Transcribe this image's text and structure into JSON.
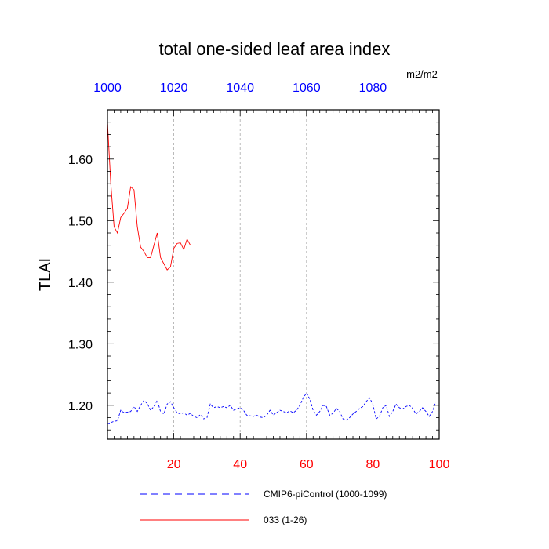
{
  "chart_data": {
    "type": "line",
    "title": "total one-sided leaf area index",
    "units": "m2/m2",
    "ylabel": "TLAI",
    "xlabel": "",
    "xlim": [
      0,
      100
    ],
    "ylim": [
      1.145,
      1.68
    ],
    "bottom_axis": {
      "color": "#ff0000",
      "ticks": [
        20,
        40,
        60,
        80,
        100
      ],
      "tick_labels": [
        "20",
        "40",
        "60",
        "80",
        "100"
      ]
    },
    "top_axis": {
      "color": "#0000ff",
      "ticks": [
        0,
        20,
        40,
        60,
        80
      ],
      "tick_labels": [
        "1000",
        "1020",
        "1040",
        "1060",
        "1080"
      ]
    },
    "left_axis": {
      "ticks": [
        1.2,
        1.3,
        1.4,
        1.5,
        1.6
      ],
      "tick_labels": [
        "1.20",
        "1.30",
        "1.40",
        "1.50",
        "1.60"
      ]
    },
    "grid": {
      "vertical": [
        20,
        40,
        60,
        80
      ],
      "style": "dashed",
      "color": "#aaaaaa"
    },
    "legend_placement": "bottom",
    "series": [
      {
        "name": "CMIP6-piControl (1000-1099)",
        "color": "#0000ff",
        "dash": "dashed",
        "x": [
          0,
          1,
          2,
          3,
          4,
          5,
          6,
          7,
          8,
          9,
          10,
          11,
          12,
          13,
          14,
          15,
          16,
          17,
          18,
          19,
          20,
          21,
          22,
          23,
          24,
          25,
          26,
          27,
          28,
          29,
          30,
          31,
          32,
          33,
          34,
          35,
          36,
          37,
          38,
          39,
          40,
          41,
          42,
          43,
          44,
          45,
          46,
          47,
          48,
          49,
          50,
          51,
          52,
          53,
          54,
          55,
          56,
          57,
          58,
          59,
          60,
          61,
          62,
          63,
          64,
          65,
          66,
          67,
          68,
          69,
          70,
          71,
          72,
          73,
          74,
          75,
          76,
          77,
          78,
          79,
          80,
          81,
          82,
          83,
          84,
          85,
          86,
          87,
          88,
          89,
          90,
          91,
          92,
          93,
          94,
          95,
          96,
          97,
          98,
          99
        ],
        "y": [
          1.17,
          1.172,
          1.174,
          1.175,
          1.192,
          1.188,
          1.189,
          1.19,
          1.198,
          1.19,
          1.2,
          1.208,
          1.203,
          1.192,
          1.198,
          1.208,
          1.19,
          1.186,
          1.202,
          1.206,
          1.196,
          1.188,
          1.186,
          1.188,
          1.184,
          1.187,
          1.182,
          1.18,
          1.185,
          1.178,
          1.18,
          1.202,
          1.196,
          1.198,
          1.196,
          1.198,
          1.196,
          1.2,
          1.192,
          1.194,
          1.196,
          1.192,
          1.184,
          1.183,
          1.182,
          1.184,
          1.181,
          1.18,
          1.184,
          1.192,
          1.184,
          1.188,
          1.192,
          1.19,
          1.188,
          1.191,
          1.188,
          1.192,
          1.2,
          1.212,
          1.22,
          1.21,
          1.192,
          1.184,
          1.19,
          1.2,
          1.198,
          1.184,
          1.187,
          1.195,
          1.19,
          1.178,
          1.176,
          1.18,
          1.186,
          1.19,
          1.195,
          1.198,
          1.206,
          1.212,
          1.202,
          1.178,
          1.182,
          1.196,
          1.2,
          1.182,
          1.19,
          1.202,
          1.196,
          1.194,
          1.198,
          1.2,
          1.195,
          1.186,
          1.19,
          1.196,
          1.19,
          1.182,
          1.19,
          1.206
        ]
      },
      {
        "name": "033 (1-26)",
        "color": "#ff0000",
        "dash": "solid",
        "x": [
          0,
          1,
          2,
          3,
          4,
          5,
          6,
          7,
          8,
          9,
          10,
          11,
          12,
          13,
          14,
          15,
          16,
          17,
          18,
          19,
          20,
          21,
          22,
          23,
          24,
          25
        ],
        "y": [
          1.66,
          1.56,
          1.49,
          1.48,
          1.505,
          1.512,
          1.52,
          1.555,
          1.55,
          1.49,
          1.457,
          1.45,
          1.44,
          1.44,
          1.46,
          1.48,
          1.44,
          1.43,
          1.42,
          1.425,
          1.455,
          1.463,
          1.464,
          1.453,
          1.47,
          1.46
        ]
      }
    ]
  }
}
